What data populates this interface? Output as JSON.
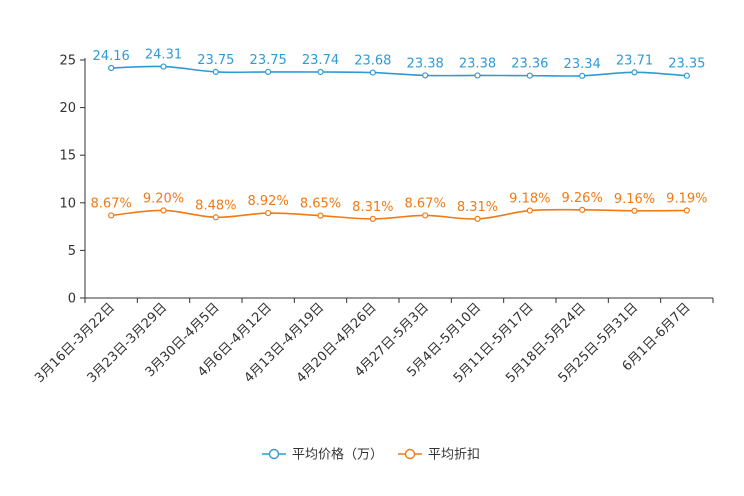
{
  "chart_data": {
    "type": "line",
    "categories": [
      "3月16日-3月22日",
      "3月23日-3月29日",
      "3月30日-4月5日",
      "4月6日-4月12日",
      "4月13日-4月19日",
      "4月20日-4月26日",
      "4月27日-5月3日",
      "5月4日-5月10日",
      "5月11日-5月17日",
      "5月18日-5月24日",
      "5月25日-5月31日",
      "6月1日-6月7日"
    ],
    "series": [
      {
        "name": "平均价格（万）",
        "color": "#2f9bd6",
        "values": [
          24.16,
          24.31,
          23.75,
          23.75,
          23.74,
          23.68,
          23.38,
          23.38,
          23.36,
          23.34,
          23.71,
          23.35
        ],
        "labels": [
          "24.16",
          "24.31",
          "23.75",
          "23.75",
          "23.74",
          "23.68",
          "23.38",
          "23.38",
          "23.36",
          "23.34",
          "23.71",
          "23.35"
        ]
      },
      {
        "name": "平均折扣",
        "color": "#f07a14",
        "values": [
          8.67,
          9.2,
          8.48,
          8.92,
          8.65,
          8.31,
          8.67,
          8.31,
          9.18,
          9.26,
          9.16,
          9.19
        ],
        "labels": [
          "8.67%",
          "9.20%",
          "8.48%",
          "8.92%",
          "8.65%",
          "8.31%",
          "8.67%",
          "8.31%",
          "9.18%",
          "9.26%",
          "9.16%",
          "9.19%"
        ]
      }
    ],
    "yticks": [
      "0",
      "5",
      "10",
      "15",
      "20",
      "25"
    ],
    "ylim": [
      0,
      25
    ],
    "grid": false,
    "legend": "bottom-center",
    "smooth": true
  }
}
